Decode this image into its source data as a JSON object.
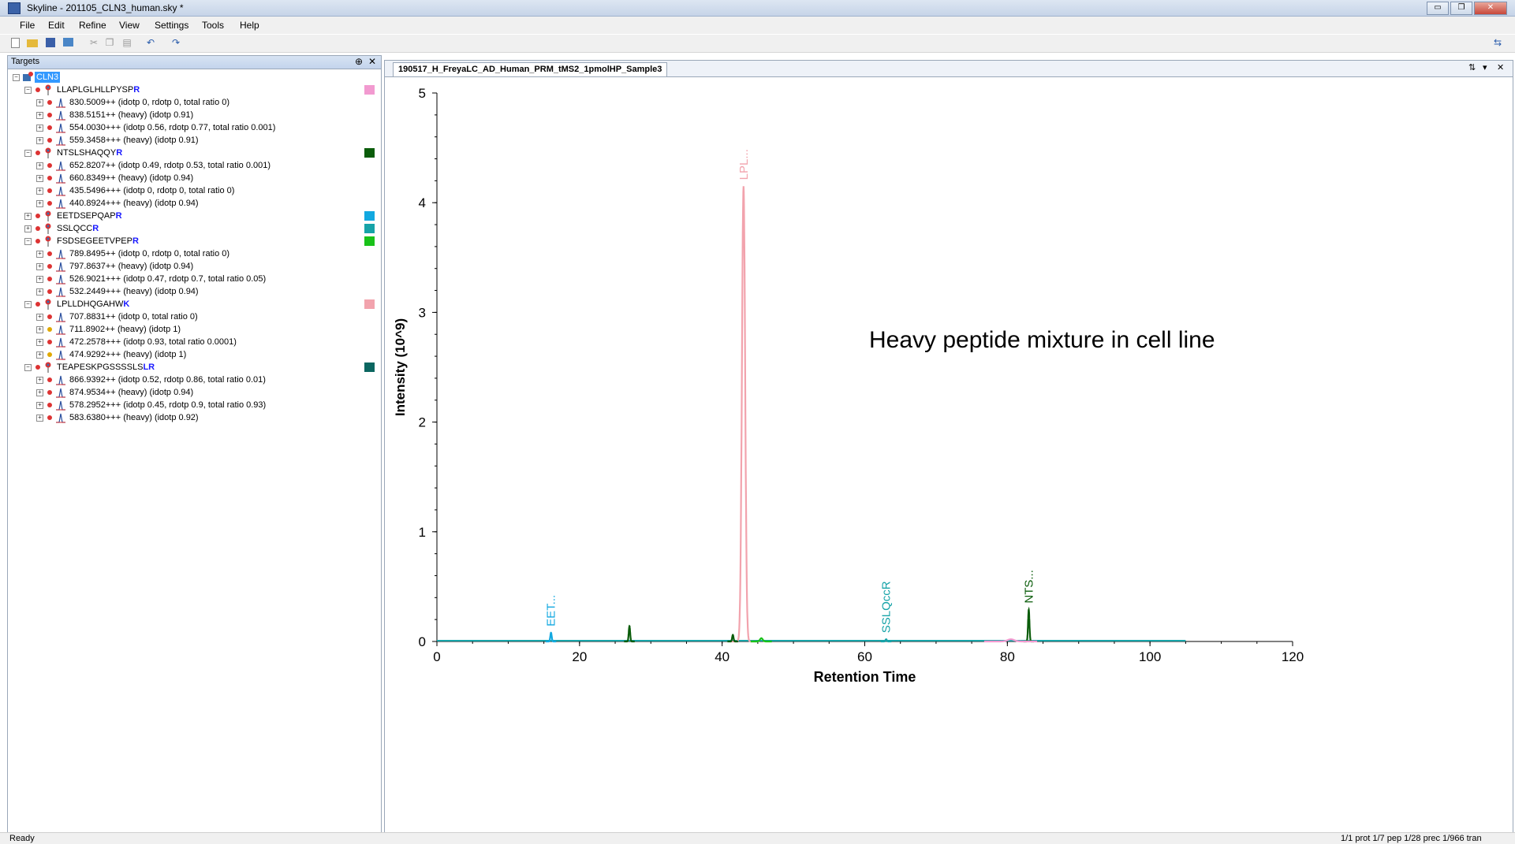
{
  "window": {
    "title": "Skyline - 201105_CLN3_human.sky *",
    "buttons": [
      "▭",
      "❐",
      "✕"
    ]
  },
  "menu": [
    "File",
    "Edit",
    "Refine",
    "View",
    "Settings",
    "Tools",
    "Help"
  ],
  "toolbar": {
    "icons": [
      "new-file-icon",
      "open-folder-icon",
      "save-icon",
      "publish-icon",
      "cut-icon",
      "copy-icon",
      "paste-icon",
      "undo-icon",
      "redo-icon",
      "link-icon"
    ]
  },
  "targets_panel": {
    "title": "Targets",
    "pin": "⊕",
    "close": "✕",
    "root_label": "CLN3",
    "peptides": [
      {
        "sequence": "LLAPLGLHLLPYSP",
        "terminal": "R",
        "color": "#f29ad0",
        "transitions": [
          {
            "label": "830.5009++ (idotp 0, rdotp 0, total ratio 0)",
            "dot": "red"
          },
          {
            "label": "838.5151++ (heavy) (idotp 0.91)",
            "dot": "red"
          },
          {
            "label": "554.0030+++ (idotp 0.56, rdotp 0.77, total ratio 0.001)",
            "dot": "red"
          },
          {
            "label": "559.3458+++ (heavy) (idotp 0.91)",
            "dot": "red"
          }
        ]
      },
      {
        "sequence": "NTSLSHAQQY",
        "terminal": "R",
        "color": "#0a5c0a",
        "transitions": [
          {
            "label": "652.8207++ (idotp 0.49, rdotp 0.53, total ratio 0.001)",
            "dot": "red"
          },
          {
            "label": "660.8349++ (heavy) (idotp 0.94)",
            "dot": "red"
          },
          {
            "label": "435.5496+++ (idotp 0, rdotp 0, total ratio 0)",
            "dot": "red"
          },
          {
            "label": "440.8924+++ (heavy) (idotp 0.94)",
            "dot": "red"
          }
        ]
      },
      {
        "sequence": "EETDSEPQAP",
        "terminal": "R",
        "color": "#12a8e0",
        "transitions": []
      },
      {
        "sequence": "SSLQCC",
        "terminal": "R",
        "color": "#16a3a8",
        "transitions": []
      },
      {
        "sequence": "FSDSEGEETVPEP",
        "terminal": "R",
        "color": "#19c219",
        "transitions": [
          {
            "label": "789.8495++ (idotp 0, rdotp 0, total ratio 0)",
            "dot": "red"
          },
          {
            "label": "797.8637++ (heavy) (idotp 0.94)",
            "dot": "red"
          },
          {
            "label": "526.9021+++ (idotp 0.47, rdotp 0.7, total ratio 0.05)",
            "dot": "red"
          },
          {
            "label": "532.2449+++ (heavy) (idotp 0.94)",
            "dot": "red"
          }
        ]
      },
      {
        "sequence": "LPLLDHQGAHW",
        "terminal": "K",
        "color": "#f2a3ad",
        "transitions": [
          {
            "label": "707.8831++ (idotp 0, total ratio 0)",
            "dot": "red"
          },
          {
            "label": "711.8902++ (heavy) (idotp 1)",
            "dot": "yellow"
          },
          {
            "label": "472.2578+++ (idotp 0.93, total ratio 0.0001)",
            "dot": "red"
          },
          {
            "label": "474.9292+++ (heavy) (idotp 1)",
            "dot": "yellow"
          }
        ]
      },
      {
        "sequence": "TEAPESKPGSSSSLS",
        "terminal": "LR",
        "color": "#0b6660",
        "transitions": [
          {
            "label": "866.9392++ (idotp 0.52, rdotp 0.86, total ratio 0.01)",
            "dot": "red"
          },
          {
            "label": "874.9534++ (heavy) (idotp 0.94)",
            "dot": "red"
          },
          {
            "label": "578.2952+++ (idotp 0.45, rdotp 0.9, total ratio 0.93)",
            "dot": "red"
          },
          {
            "label": "583.6380+++ (heavy) (idotp 0.92)",
            "dot": "red"
          }
        ]
      }
    ]
  },
  "chromatogram": {
    "tab_label": "190517_H_FreyaLC_AD_Human_PRM_tMS2_1pmolHP_Sample3",
    "tab_controls": [
      "⇅",
      "▾",
      "✕"
    ]
  },
  "chart_data": {
    "type": "line",
    "title": "",
    "xlabel": "Retention Time",
    "ylabel": "Intensity (10^9)",
    "xlim": [
      0,
      120
    ],
    "ylim": [
      0,
      5
    ],
    "x_ticks": [
      0,
      20,
      40,
      60,
      80,
      100,
      120
    ],
    "y_ticks": [
      0,
      1,
      2,
      3,
      4,
      5
    ],
    "annotation": "Heavy peptide mixture in cell line",
    "series": [
      {
        "color": "#f2a3ad",
        "peak_rt": 43.0,
        "peak_height": 4.15,
        "width": 0.7,
        "label": "LPL..."
      },
      {
        "color": "#0a5c0a",
        "peak_rt": 83.0,
        "peak_height": 0.29,
        "width": 0.3,
        "label": "NTS..."
      },
      {
        "color": "#12a8e0",
        "peak_rt": 16.0,
        "peak_height": 0.08,
        "width": 0.3,
        "label": "EET..."
      },
      {
        "color": "#16a3a8",
        "peak_rt": 63.0,
        "peak_height": 0.02,
        "width": 0.3,
        "label": "SSLQccR"
      },
      {
        "color": "#0a5c0a",
        "peak_rt": 27.0,
        "peak_height": 0.14,
        "width": 0.3,
        "label": ""
      },
      {
        "color": "#0a5c0a",
        "peak_rt": 41.5,
        "peak_height": 0.06,
        "width": 0.3,
        "label": ""
      },
      {
        "color": "#19c219",
        "peak_rt": 45.5,
        "peak_height": 0.03,
        "width": 0.6,
        "label": ""
      },
      {
        "color": "#f29ad0",
        "peak_rt": 80.5,
        "peak_height": 0.02,
        "width": 1.5,
        "label": ""
      }
    ]
  },
  "status": {
    "left": "Ready",
    "right": "1/1 prot  1/7 pep  1/28 prec  1/966 tran"
  }
}
